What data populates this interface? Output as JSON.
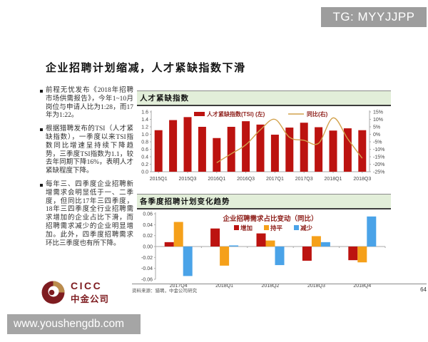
{
  "watermarks": {
    "tg": "TG: MYYJJPP",
    "site": "www.youshengdb.com"
  },
  "title": "企业招聘计划缩减，人才紧缺指数下滑",
  "bullets": [
    "前程无忧发布《2018年招聘市场供需报告》，今年1~10月岗位与申请人比为1:28，而17年为1:22。",
    "根据猎聘发布的TSI（人才紧缺指数），一季度以来TSI指数同比增速呈持续下降趋势，三季度TSI指数为1.1，较去年同期下降16%，表明人才紧缺程度下降。",
    "每年三、四季度企业招聘新增需求会明显低于一、二季度，但同比17年三四季度，18年三四季度全行业招聘需求增加的企业占比下滑，而招聘需求减少的企业明显增加。此外，四季度招聘需求环比三季度也有所下降。"
  ],
  "logo": {
    "cicc": "CICC",
    "chinese": "中金公司"
  },
  "footer": {
    "source": "资料来源：猎聘，中金公司研究",
    "page": "64"
  },
  "colors": {
    "bar_red": "#bc1310",
    "line_gold": "#d2a24c",
    "orange": "#f5a01a",
    "blue": "#4aa3e8",
    "header_green": "#e2eed9",
    "maroon_text": "#8e1f1a",
    "gray_box": "#9d9d9d",
    "axis_gray": "#aaaaaa",
    "tick_text": "#444444"
  },
  "chart_data": [
    {
      "type": "bar",
      "subtype": "bar+line dual axis",
      "panel_title": "人才紧缺指数",
      "categories": [
        "2015Q1",
        "2015Q2",
        "2015Q3",
        "2015Q4",
        "2016Q1",
        "2016Q2",
        "2016Q3",
        "2016Q4",
        "2017Q1",
        "2017Q2",
        "2017Q3",
        "2017Q4",
        "2018Q1",
        "2018Q2",
        "2018Q3"
      ],
      "x_tick_labels": [
        "2015Q1",
        "2015Q3",
        "2016Q1",
        "2016Q3",
        "2017Q1",
        "2017Q3",
        "2018Q1",
        "2018Q3"
      ],
      "series": [
        {
          "name": "人才紧缺指数(TSI) (左)",
          "type": "bar",
          "axis": "left",
          "color": "#bc1310",
          "values": [
            1.11,
            1.38,
            1.46,
            1.2,
            0.9,
            1.2,
            1.35,
            1.26,
            0.99,
            1.18,
            1.31,
            1.19,
            1.1,
            1.16,
            1.11
          ]
        },
        {
          "name": "同比(右)",
          "type": "line",
          "axis": "right",
          "color": "#d2a24c",
          "values": [
            null,
            null,
            null,
            null,
            -19,
            -13,
            -7,
            3,
            10,
            -2,
            -4,
            -6,
            11,
            -3,
            -16
          ]
        }
      ],
      "left_axis": {
        "min": 0.0,
        "max": 1.6,
        "step": 0.2
      },
      "right_axis": {
        "min": -25,
        "max": 15,
        "step": 5,
        "unit": "%"
      },
      "grid": false,
      "legend_position": "top-center"
    },
    {
      "type": "bar",
      "subtype": "grouped bar",
      "panel_title": "各季度招聘计划变化趋势",
      "title": "企业招聘需求占比变动（同比）",
      "categories": [
        "2017Q4",
        "2018Q1",
        "2018Q2",
        "2018Q3",
        "2018Q4"
      ],
      "series": [
        {
          "name": "增加",
          "color": "#bc1310",
          "values": [
            0.008,
            0.033,
            0.024,
            -0.026,
            -0.025
          ]
        },
        {
          "name": "持平",
          "color": "#f5a01a",
          "values": [
            0.045,
            -0.035,
            0.011,
            0.019,
            -0.029
          ]
        },
        {
          "name": "减少",
          "color": "#4aa3e8",
          "values": [
            -0.054,
            0.002,
            -0.034,
            0.008,
            0.055
          ]
        }
      ],
      "y_axis": {
        "min": -0.06,
        "max": 0.06,
        "step": 0.02
      },
      "grid": false,
      "legend_position": "top-center"
    }
  ]
}
